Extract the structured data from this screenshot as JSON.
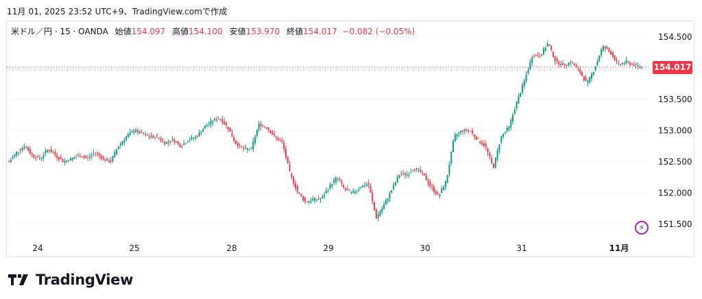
{
  "caption": "11月 01, 2025 23:52 UTC+9、TradingView.comで作成",
  "legend": {
    "symbol": "米ドル／円 · 15 · OANDA",
    "open_label": "始値",
    "open": "154.097",
    "high_label": "高値",
    "high": "154.100",
    "low_label": "安値",
    "low": "153.970",
    "close_label": "終値",
    "close": "154.017",
    "change": "−0.082 (−0.05%)"
  },
  "current_price_label": "154.017",
  "brand": "TradingView",
  "colors": {
    "up": "#089981",
    "down": "#f23645",
    "grid": "#f0f3fa",
    "text": "#131722"
  },
  "chart_data": {
    "type": "candlestick",
    "x_ticks": [
      "24",
      "25",
      "28",
      "29",
      "30",
      "31",
      "11月"
    ],
    "y_ticks": [
      "151.500",
      "152.000",
      "152.500",
      "153.000",
      "153.500",
      "154.000",
      "154.500"
    ],
    "ylim": [
      151.3,
      154.75
    ],
    "current_price": 154.017,
    "path": [
      {
        "day": "24",
        "prices": [
          152.5,
          152.65,
          152.75,
          152.6,
          152.55,
          152.7,
          152.6,
          152.5,
          152.55
        ]
      },
      {
        "day": "",
        "prices": [
          152.6,
          152.55,
          152.65,
          152.55,
          152.5,
          152.75,
          152.9,
          153.0,
          152.95,
          152.9
        ]
      },
      {
        "day": "25",
        "prices": [
          152.9,
          152.8,
          152.85,
          152.75,
          152.85,
          152.9,
          153.05,
          153.15,
          153.2,
          153.05,
          152.8,
          152.7
        ]
      },
      {
        "day": "28",
        "prices": [
          152.7,
          153.1,
          153.05,
          152.9,
          152.8,
          152.3,
          152.0,
          151.85,
          151.9
        ]
      },
      {
        "day": "29",
        "prices": [
          151.9,
          152.1,
          152.25,
          152.05,
          152.0,
          152.1,
          152.15,
          151.6,
          151.8,
          152.05,
          152.3
        ]
      },
      {
        "day": "",
        "prices": [
          152.3,
          152.4,
          152.3,
          152.1,
          151.95,
          152.2,
          152.9,
          153.0
        ]
      },
      {
        "day": "30",
        "prices": [
          153.0,
          152.85,
          152.75,
          152.4,
          152.9,
          153.05,
          153.45,
          153.8,
          154.2
        ]
      },
      {
        "day": "31",
        "prices": [
          154.2,
          154.4,
          154.1,
          154.05,
          154.1,
          153.95,
          153.75,
          154.0,
          154.35,
          154.25,
          154.05,
          154.1,
          154.05,
          154.02
        ]
      }
    ]
  }
}
